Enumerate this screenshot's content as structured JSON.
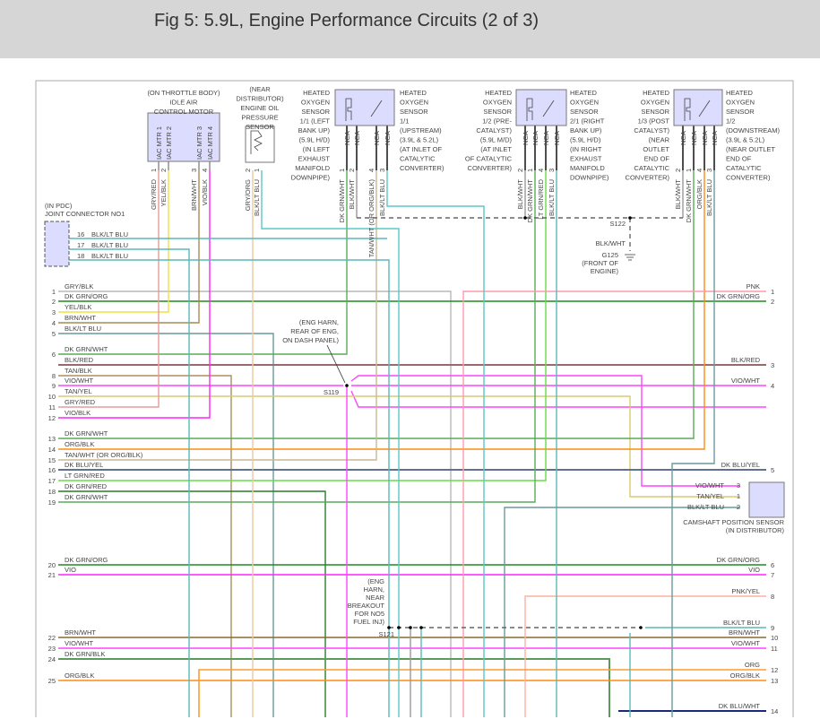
{
  "title": "Fig 5: 5.9L, Engine Performance Circuits (2 of 3)",
  "components": {
    "iac": {
      "caption": [
        "(ON THROTTLE BODY)",
        "IDLE AIR",
        "CONTROL MOTOR"
      ],
      "pins": [
        "IAC MTR 1",
        "IAC MTR 2",
        "IAC MTR 3",
        "IAC MTR 4"
      ],
      "pin_nums": [
        "1",
        "2",
        "3",
        "4"
      ],
      "wires": [
        "GRY/RED",
        "YEL/BLK",
        "BRN/WHT",
        "VIO/BLK"
      ]
    },
    "oil": {
      "caption": [
        "(NEAR",
        "DISTRIBUTOR)",
        "ENGINE OIL",
        "PRESSURE",
        "SENSOR"
      ],
      "pin_nums": [
        "2",
        "1"
      ],
      "wires": [
        "GRY/ORG",
        "BLK/LT BLU"
      ]
    },
    "o2_11": {
      "caption_left": [
        "HEATED",
        "OXYGEN",
        "SENSOR",
        "1/1 (LEFT",
        "BANK UP)",
        "(5.9L H/D)",
        "(IN LEFT",
        "EXHAUST",
        "MANIFOLD",
        "DOWNPIPE)"
      ],
      "caption_right": [
        "HEATED",
        "OXYGEN",
        "SENSOR",
        "1/1",
        "(UPSTREAM)",
        "(3.9L & 5.2L)",
        "(AT INLET OF",
        "CATALYTIC",
        "CONVERTER)"
      ],
      "pins": [
        "NCA",
        "NCA",
        "NCA",
        "NCA"
      ],
      "pin_nums": [
        "1",
        "2",
        "4",
        "3"
      ],
      "wires": [
        "DK GRN/WHT",
        "BLK/WHT",
        "TAN/WHT (OR ORG/BLK)",
        "BLK/LT BLU"
      ]
    },
    "o2_12": {
      "caption_left": [
        "HEATED",
        "OXYGEN",
        "SENSOR",
        "1/2 (PRE-",
        "CATALYST)",
        "(5.9L M/D)",
        "(AT INLET",
        "OF CATALYTIC",
        "CONVERTER)"
      ],
      "caption_right": [
        "HEATED",
        "OXYGEN",
        "SENSOR",
        "2/1 (RIGHT",
        "BANK UP)",
        "(5.9L H/D)",
        "(IN RIGHT",
        "EXHAUST",
        "MANIFOLD",
        "DOWNPIPE)"
      ],
      "pins": [
        "NCA",
        "NCA",
        "NCA",
        "NCA"
      ],
      "pin_nums": [
        "2",
        "1",
        "4",
        "3"
      ],
      "wires": [
        "BLK/WHT",
        "DK GRN/WHT",
        "LT GRN/RED",
        "BLK/LT BLU"
      ]
    },
    "o2_13": {
      "caption_left": [
        "HEATED",
        "OXYGEN",
        "SENSOR",
        "1/3 (POST",
        "CATALYST)",
        "(NEAR",
        "OUTLET",
        "END OF",
        "CATALYTIC",
        "CONVERTER)"
      ],
      "caption_right": [
        "HEATED",
        "OXYGEN",
        "SENSOR",
        "1/2",
        "(DOWNSTREAM)",
        "(3.9L & 5.2L)",
        "(NEAR OUTLET",
        "END OF",
        "CATALYTIC",
        "CONVERTER)"
      ],
      "pins": [
        "NCA",
        "NCA",
        "NCA",
        "NCA"
      ],
      "pin_nums": [
        "2",
        "1",
        "4",
        "3"
      ],
      "wires": [
        "BLK/WHT",
        "DK GRN/WHT",
        "ORG/BLK",
        "BLK/LT BLU"
      ]
    },
    "joint": {
      "caption": [
        "(IN PDC)",
        "JOINT CONNECTOR NO1"
      ],
      "pins": [
        {
          "num": "16",
          "wire": "BLK/LT BLU"
        },
        {
          "num": "17",
          "wire": "BLK/LT BLU"
        },
        {
          "num": "18",
          "wire": "BLK/LT BLU"
        }
      ]
    },
    "cam": {
      "caption": [
        "CAMSHAFT POSITION SENSOR",
        "(IN DISTRIBUTOR)"
      ],
      "pins": [
        {
          "num": "3",
          "wire": "VIO/WHT"
        },
        {
          "num": "1",
          "wire": "TAN/YEL"
        },
        {
          "num": "2",
          "wire": "BLK/LT BLU"
        }
      ]
    }
  },
  "splices": {
    "s119": {
      "id": "S119",
      "note": [
        "(ENG HARN,",
        "REAR OF ENG,",
        "ON DASH PANEL)"
      ]
    },
    "s121": {
      "id": "S121",
      "note": [
        "(ENG",
        "HARN,",
        "NEAR",
        "BREAKOUT",
        "FOR NO5",
        "FUEL INJ)"
      ]
    },
    "s122": {
      "id": "S122",
      "wire": "BLK/WHT",
      "ground": [
        "G125",
        "(FRONT OF",
        "ENGINE)"
      ]
    }
  },
  "left_rows": [
    {
      "num": "1",
      "wire": "GRY/BLK",
      "color": "#b8b8b8"
    },
    {
      "num": "2",
      "wire": "DK GRN/ORG",
      "color": "#1f8a1f"
    },
    {
      "num": "3",
      "wire": "YEL/BLK",
      "color": "#f0e040"
    },
    {
      "num": "4",
      "wire": "BRN/WHT",
      "color": "#a88a50"
    },
    {
      "num": "5",
      "wire": "BLK/LT BLU",
      "color": "#6a9a9a"
    },
    {
      "num": "6",
      "wire": "DK GRN/WHT",
      "color": "#5aaa5a"
    },
    {
      "num": "",
      "wire": "BLK/RED",
      "color": "#9a6a6a"
    },
    {
      "num": "8",
      "wire": "TAN/BLK",
      "color": "#a89060"
    },
    {
      "num": "9",
      "wire": "VIO/WHT",
      "color": "#ff44ff"
    },
    {
      "num": "10",
      "wire": "TAN/YEL",
      "color": "#d8cc70"
    },
    {
      "num": "11",
      "wire": "GRY/RED",
      "color": "#e89a9a"
    },
    {
      "num": "12",
      "wire": "VIO/BLK",
      "color": "#ff22ff"
    },
    {
      "num": "13",
      "wire": "DK GRN/WHT",
      "color": "#5aaa5a"
    },
    {
      "num": "14",
      "wire": "ORG/BLK",
      "color": "#ff8a10"
    },
    {
      "num": "15",
      "wire": "TAN/WHT (OR ORG/BLK)",
      "color": "#c8b890"
    },
    {
      "num": "16",
      "wire": "DK BLU/YEL",
      "color": "#607090"
    },
    {
      "num": "17",
      "wire": "LT GRN/RED",
      "color": "#66dd44"
    },
    {
      "num": "18",
      "wire": "DK GRN/RED",
      "color": "#2a7a2a"
    },
    {
      "num": "19",
      "wire": "DK GRN/WHT",
      "color": "#5aaa5a"
    },
    {
      "num": "20",
      "wire": "DK GRN/ORG",
      "color": "#1f8a1f"
    },
    {
      "num": "21",
      "wire": "VIO",
      "color": "#ff22ff"
    },
    {
      "num": "22",
      "wire": "BRN/WHT",
      "color": "#8a6a30"
    },
    {
      "num": "23",
      "wire": "VIO/WHT",
      "color": "#ff44ff"
    },
    {
      "num": "24",
      "wire": "DK GRN/BLK",
      "color": "#5a9a5a"
    },
    {
      "num": "25",
      "wire": "ORG/BLK",
      "color": "#ff8a10"
    }
  ],
  "right_rows": [
    {
      "num": "1",
      "wire": "PNK",
      "color": "#ff9aaa"
    },
    {
      "num": "2",
      "wire": "DK GRN/ORG",
      "color": "#1f8a1f"
    },
    {
      "num": "3",
      "wire": "BLK/RED",
      "color": "#9a6a6a"
    },
    {
      "num": "4",
      "wire": "VIO/WHT",
      "color": "#ff44ff"
    },
    {
      "num": "5",
      "wire": "DK BLU/YEL",
      "color": "#607090"
    },
    {
      "num": "6",
      "wire": "DK GRN/ORG",
      "color": "#1f8a1f"
    },
    {
      "num": "7",
      "wire": "VIO",
      "color": "#ff22ff"
    },
    {
      "num": "8",
      "wire": "PNK/YEL",
      "color": "#ffb0a0"
    },
    {
      "num": "9",
      "wire": "BLK/LT BLU",
      "color": "#5ab8b8"
    },
    {
      "num": "10",
      "wire": "BRN/WHT",
      "color": "#8a6a30"
    },
    {
      "num": "11",
      "wire": "VIO/WHT",
      "color": "#ff44ff"
    },
    {
      "num": "12",
      "wire": "ORG",
      "color": "#ff9a30"
    },
    {
      "num": "13",
      "wire": "ORG/BLK",
      "color": "#ff8a10"
    },
    {
      "num": "14",
      "wire": "DK BLU/WHT",
      "color": "#1a2a7a"
    }
  ],
  "colors": {
    "component_fill": "#dcdcff",
    "border": "#999999",
    "header_bg": "#d6d6d6"
  }
}
